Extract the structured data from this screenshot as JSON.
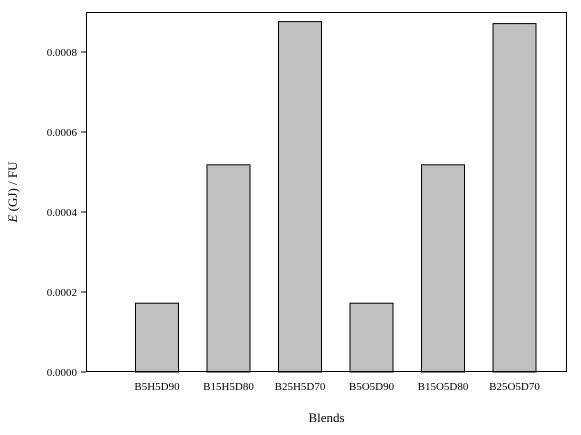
{
  "chart_data": {
    "type": "bar",
    "title": "",
    "xlabel": "Blends",
    "ylabel_italic": "E",
    "ylabel_rest": " (GJ) / FU",
    "categories": [
      "B5H5D90",
      "B15H5D80",
      "B25H5D70",
      "B5O5D90",
      "B15O5D80",
      "B25O5D70"
    ],
    "values": [
      0.000172,
      0.000518,
      0.000876,
      0.000172,
      0.000518,
      0.000871
    ],
    "ylim": [
      0,
      0.0009
    ],
    "yticks": [
      0,
      0.0002,
      0.0004,
      0.0006,
      0.0008
    ],
    "ytick_labels": [
      "0.0000",
      "0.0002",
      "0.0004",
      "0.0006",
      "0.0008"
    ],
    "grid": false,
    "legend": "none",
    "bar_color": "#c0c0c0",
    "edge_color": "#000000"
  }
}
